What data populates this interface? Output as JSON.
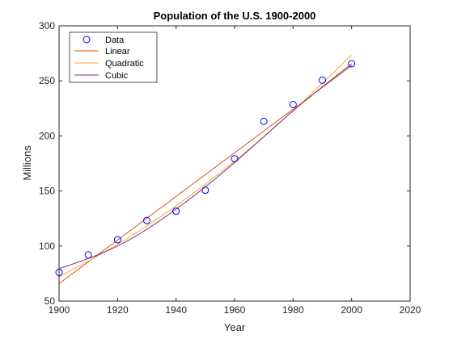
{
  "chart_data": {
    "type": "line",
    "title": "Population of the U.S. 1900-2000",
    "xlabel": "Year",
    "ylabel": "Millions",
    "xlim": [
      1900,
      2020
    ],
    "ylim": [
      50,
      300
    ],
    "xticks": [
      1900,
      1920,
      1940,
      1960,
      1980,
      2000,
      2020
    ],
    "yticks": [
      50,
      100,
      150,
      200,
      250,
      300
    ],
    "grid": false,
    "legend_position": "top-left",
    "data": {
      "name": "Data",
      "x": [
        1900,
        1910,
        1920,
        1930,
        1940,
        1950,
        1960,
        1970,
        1980,
        1990,
        2000
      ],
      "y": [
        75.995,
        91.972,
        105.711,
        123.203,
        131.669,
        150.697,
        179.323,
        213.212,
        228.505,
        250.633,
        265.6
      ]
    },
    "fits": [
      {
        "name": "Linear",
        "color": "#D95319",
        "degree": 1,
        "x": [
          1900,
          2000
        ],
        "y": [
          65.8,
          263.9
        ]
      },
      {
        "name": "Quadratic",
        "color": "#EDB120",
        "degree": 2,
        "x": [
          1900,
          1920,
          1940,
          1960,
          1980,
          2000
        ],
        "y": [
          72.0,
          101.5,
          136.6,
          177.1,
          222.9,
          273.5
        ]
      },
      {
        "name": "Cubic",
        "color": "#7E2F8E",
        "degree": 3,
        "x": [
          1900,
          1920,
          1940,
          1960,
          1980,
          2000
        ],
        "y": [
          79.5,
          100.0,
          133.5,
          175.8,
          222.7,
          265.4
        ]
      }
    ],
    "data_marker_color": "#0000FF"
  }
}
